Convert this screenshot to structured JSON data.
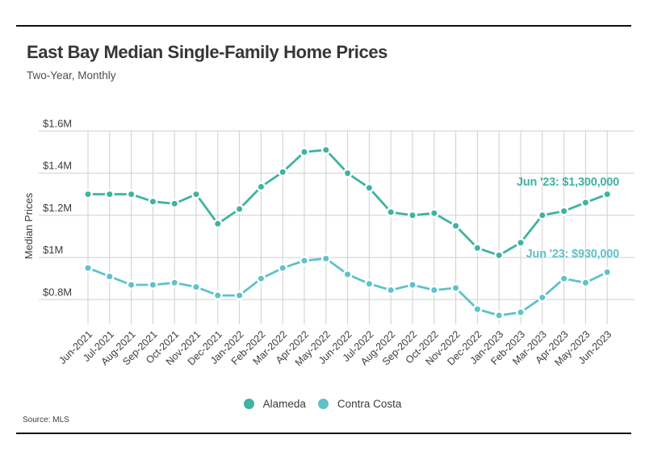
{
  "header": {
    "title": "East Bay Median Single-Family Home Prices",
    "subtitle": "Two-Year, Monthly"
  },
  "footer": {
    "source": "Source: MLS"
  },
  "chart_data": {
    "type": "line",
    "title": "East Bay Median Single-Family Home Prices",
    "subtitle": "Two-Year, Monthly",
    "xlabel": "",
    "ylabel": "Median Prices",
    "unit": "millions of dollars",
    "ylim": [
      0.68,
      1.62
    ],
    "grid": true,
    "legend_position": "bottom",
    "y_ticks": [
      {
        "label": "$1.6M",
        "value": 1.6
      },
      {
        "label": "$1.4M",
        "value": 1.4
      },
      {
        "label": "$1.2M",
        "value": 1.2
      },
      {
        "label": "$1M",
        "value": 1.0
      },
      {
        "label": "$0.8M",
        "value": 0.8
      }
    ],
    "categories": [
      "Jun-2021",
      "Jul-2021",
      "Aug-2021",
      "Sep-2021",
      "Oct-2021",
      "Nov-2021",
      "Dec-2021",
      "Jan-2022",
      "Feb-2022",
      "Mar-2022",
      "Apr-2022",
      "May-2022",
      "Jun-2022",
      "Jul-2022",
      "Aug-2022",
      "Sep-2022",
      "Oct-2022",
      "Nov-2022",
      "Dec-2022",
      "Jan-2023",
      "Feb-2023",
      "Mar-2023",
      "Apr-2023",
      "May-2023",
      "Jun-2023"
    ],
    "series": [
      {
        "name": "Alameda",
        "color": "#3eb3a0",
        "values": [
          1.3,
          1.3,
          1.3,
          1.265,
          1.255,
          1.3,
          1.16,
          1.23,
          1.335,
          1.405,
          1.5,
          1.51,
          1.4,
          1.33,
          1.215,
          1.2,
          1.21,
          1.15,
          1.045,
          1.01,
          1.07,
          1.2,
          1.22,
          1.26,
          1.3
        ]
      },
      {
        "name": "Contra Costa",
        "color": "#5ec2cb",
        "values": [
          0.95,
          0.91,
          0.87,
          0.87,
          0.88,
          0.86,
          0.82,
          0.82,
          0.9,
          0.95,
          0.985,
          0.995,
          0.92,
          0.875,
          0.845,
          0.87,
          0.845,
          0.855,
          0.755,
          0.725,
          0.74,
          0.81,
          0.9,
          0.88,
          0.93
        ]
      }
    ],
    "annotations": [
      {
        "series": "Alameda",
        "text": "Jun '23: $1,300,000"
      },
      {
        "series": "Contra Costa",
        "text": "Jun '23: $930,000"
      }
    ]
  }
}
